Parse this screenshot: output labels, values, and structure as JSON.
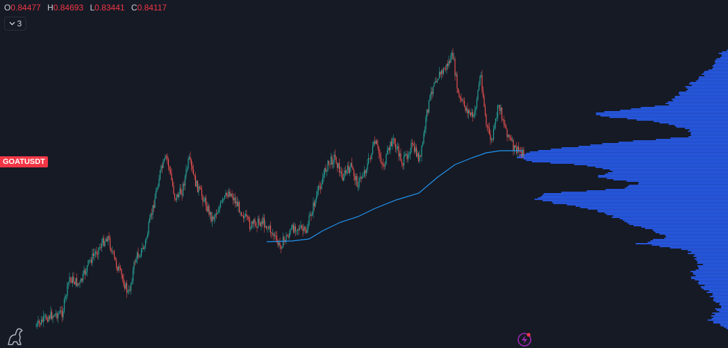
{
  "legend": {
    "open_label": "O",
    "open": "0.84477",
    "high_label": "H",
    "high": "0.84693",
    "low_label": "L",
    "low": "0.83441",
    "close_label": "C",
    "close": "0.84117",
    "indicator_count": "3"
  },
  "symbol": "GOATUSDT",
  "colors": {
    "background": "#161a25",
    "up": "#26a69a",
    "down": "#ef5350",
    "moving_average": "#2196f3",
    "volume_profile": "#2962ff"
  },
  "icons": {
    "collapse": "chevron-down-icon",
    "logo": "tradingview-dino-logo",
    "flash": "lightning-icon"
  }
}
